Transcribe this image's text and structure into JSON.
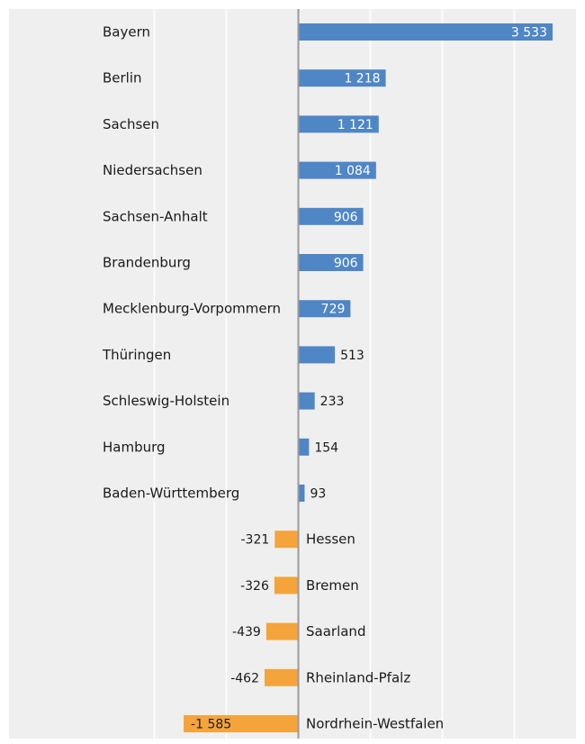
{
  "chart_data": {
    "type": "bar",
    "orientation": "horizontal",
    "categories": [
      "Bayern",
      "Berlin",
      "Sachsen",
      "Niedersachsen",
      "Sachsen-Anhalt",
      "Brandenburg",
      "Mecklenburg-Vorpommern",
      "Thüringen",
      "Schleswig-Holstein",
      "Hamburg",
      "Baden-Württemberg",
      "Hessen",
      "Bremen",
      "Saarland",
      "Rheinland-Pfalz",
      "Nordrhein-Westfalen"
    ],
    "values": [
      3533,
      1218,
      1121,
      1084,
      906,
      906,
      729,
      513,
      233,
      154,
      93,
      -321,
      -326,
      -439,
      -462,
      -1585
    ],
    "value_labels": [
      "3 533",
      "1 218",
      "1 121",
      "1 084",
      "906",
      "906",
      "729",
      "513",
      "233",
      "154",
      "93",
      "-321",
      "-326",
      "-439",
      "-462",
      "-1 585"
    ],
    "title": "",
    "xlabel": "",
    "ylabel": "",
    "xlim": [
      -2500,
      4000
    ],
    "grid": true,
    "colors": {
      "positive": "#4f86c6",
      "negative": "#f4a43a",
      "background": "#efefef",
      "axis": "#9a9a9a",
      "grid": "#ffffff"
    }
  }
}
